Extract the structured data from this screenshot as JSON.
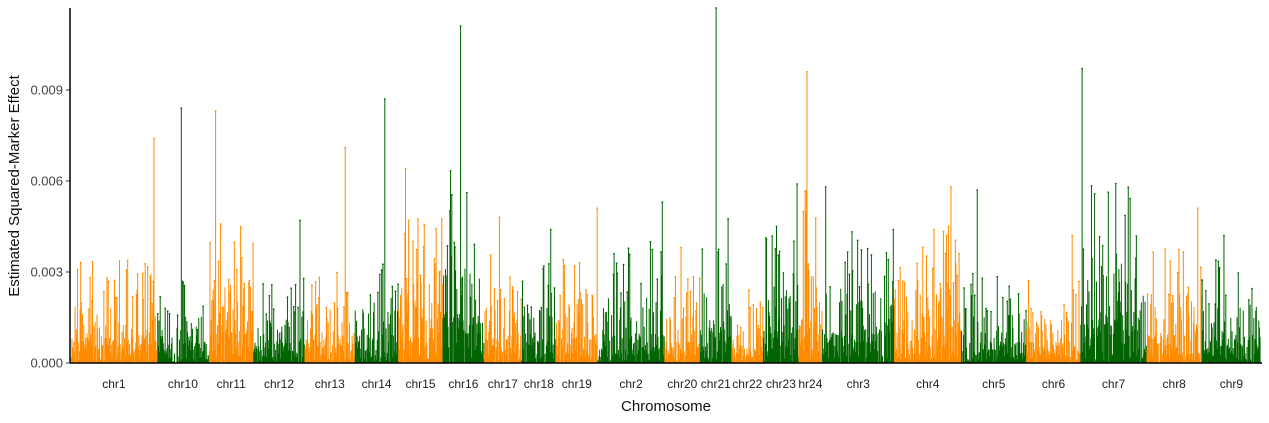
{
  "chart_data": {
    "type": "bar",
    "subtype": "manhattan",
    "xlabel": "Chromosome",
    "ylabel": "Estimated Squared-Marker Effect",
    "ylim": [
      0,
      0.0117
    ],
    "yticks": [
      {
        "value": 0,
        "label": "0.000"
      },
      {
        "value": 0.003,
        "label": "0.003"
      },
      {
        "value": 0.006,
        "label": "0.006"
      },
      {
        "value": 0.009,
        "label": "0.009"
      }
    ],
    "grid": false,
    "legend": "none",
    "colors": {
      "odd": "#ff8c00",
      "even": "#006400"
    },
    "chromosomes": [
      {
        "name": "chr1",
        "span": 87,
        "max": 0.0074,
        "typical": 0.0035
      },
      {
        "name": "chr10",
        "span": 53,
        "max": 0.0084,
        "typical": 0.0028
      },
      {
        "name": "chr11",
        "span": 45,
        "max": 0.0083,
        "typical": 0.0047
      },
      {
        "name": "chr12",
        "span": 52,
        "max": 0.0047,
        "typical": 0.0028
      },
      {
        "name": "chr13",
        "span": 51,
        "max": 0.0071,
        "typical": 0.0032
      },
      {
        "name": "chr14",
        "span": 44,
        "max": 0.0087,
        "typical": 0.004
      },
      {
        "name": "chr15",
        "span": 45,
        "max": 0.0064,
        "typical": 0.005
      },
      {
        "name": "chr16",
        "span": 42,
        "max": 0.0111,
        "typical": 0.0065
      },
      {
        "name": "chr17",
        "span": 38,
        "max": 0.0048,
        "typical": 0.0036
      },
      {
        "name": "chr18",
        "span": 35,
        "max": 0.0044,
        "typical": 0.0033
      },
      {
        "name": "chr19",
        "span": 42,
        "max": 0.0051,
        "typical": 0.004
      },
      {
        "name": "chr2",
        "span": 68,
        "max": 0.0053,
        "typical": 0.004
      },
      {
        "name": "chr20",
        "span": 36,
        "max": 0.0038,
        "typical": 0.003
      },
      {
        "name": "chr21",
        "span": 32,
        "max": 0.0117,
        "typical": 0.0048
      },
      {
        "name": "chr22",
        "span": 32,
        "max": 0.0024,
        "typical": 0.002
      },
      {
        "name": "chr23",
        "span": 36,
        "max": 0.0059,
        "typical": 0.005
      },
      {
        "name": "hr24",
        "span": 24,
        "max": 0.0096,
        "typical": 0.0057
      },
      {
        "name": "chr3",
        "span": 73,
        "max": 0.0058,
        "typical": 0.0045
      },
      {
        "name": "chr4",
        "span": 68,
        "max": 0.0058,
        "typical": 0.0045
      },
      {
        "name": "chr5",
        "span": 66,
        "max": 0.0057,
        "typical": 0.003
      },
      {
        "name": "chr6",
        "span": 55,
        "max": 0.0042,
        "typical": 0.0028
      },
      {
        "name": "chr7",
        "span": 67,
        "max": 0.0097,
        "typical": 0.006
      },
      {
        "name": "chr8",
        "span": 56,
        "max": 0.0051,
        "typical": 0.0038
      },
      {
        "name": "chr9",
        "span": 60,
        "max": 0.0042,
        "typical": 0.0035
      }
    ]
  }
}
